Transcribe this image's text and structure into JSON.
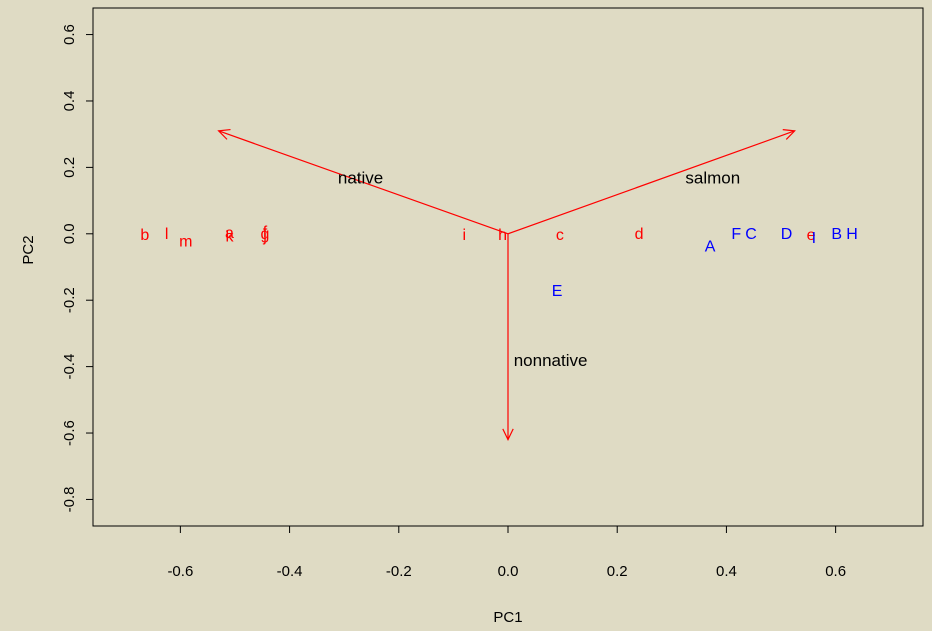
{
  "chart_data": {
    "type": "scatter",
    "title": "",
    "xlabel": "PC1",
    "ylabel": "PC2",
    "xlim": [
      -0.76,
      0.76
    ],
    "ylim": [
      -0.88,
      0.68
    ],
    "xticks": [
      -0.6,
      -0.4,
      -0.2,
      0.0,
      0.2,
      0.4,
      0.6
    ],
    "xtick_labels": [
      "-0.6",
      "-0.4",
      "-0.2",
      "0.0",
      "0.2",
      "0.4",
      "0.6"
    ],
    "yticks": [
      -0.8,
      -0.6,
      -0.4,
      -0.2,
      0.0,
      0.2,
      0.4,
      0.6
    ],
    "ytick_labels": [
      "-0.8",
      "-0.6",
      "-0.4",
      "-0.2",
      "0.0",
      "0.2",
      "0.4",
      "0.6"
    ],
    "grid": false,
    "colors": {
      "red": "#ff0000",
      "blue": "#0000ff",
      "black": "#000000",
      "background": "#dfdbc4"
    },
    "series": [
      {
        "color": "#ff0000",
        "points": [
          {
            "label": "b",
            "x": -0.665,
            "y": 0.0
          },
          {
            "label": "l",
            "x": -0.625,
            "y": 0.003
          },
          {
            "label": "m",
            "x": -0.59,
            "y": -0.02
          },
          {
            "label": "a",
            "x": -0.51,
            "y": 0.005
          },
          {
            "label": "k",
            "x": -0.51,
            "y": -0.005
          },
          {
            "label": "g",
            "x": -0.445,
            "y": 0.003
          },
          {
            "label": "f",
            "x": -0.445,
            "y": 0.008
          },
          {
            "label": "j",
            "x": -0.445,
            "y": -0.003
          },
          {
            "label": "i",
            "x": -0.08,
            "y": 0.0
          },
          {
            "label": "h",
            "x": -0.01,
            "y": 0.0
          },
          {
            "label": "c",
            "x": 0.095,
            "y": 0.0
          },
          {
            "label": "d",
            "x": 0.24,
            "y": 0.003
          },
          {
            "label": "e",
            "x": 0.555,
            "y": 0.0
          }
        ]
      },
      {
        "color": "#0000ff",
        "points": [
          {
            "label": "A",
            "x": 0.37,
            "y": -0.035
          },
          {
            "label": "F",
            "x": 0.418,
            "y": 0.003
          },
          {
            "label": "C",
            "x": 0.445,
            "y": 0.003
          },
          {
            "label": "D",
            "x": 0.51,
            "y": 0.003
          },
          {
            "label": "I",
            "x": 0.56,
            "y": -0.01
          },
          {
            "label": "B",
            "x": 0.602,
            "y": 0.003
          },
          {
            "label": "H",
            "x": 0.63,
            "y": 0.003
          },
          {
            "label": "E",
            "x": 0.09,
            "y": -0.17
          }
        ]
      }
    ],
    "arrows": [
      {
        "label": "native",
        "x": -0.53,
        "y": 0.31,
        "label_x": -0.27,
        "label_y": 0.17
      },
      {
        "label": "salmon",
        "x": 0.525,
        "y": 0.31,
        "label_x": 0.375,
        "label_y": 0.17
      },
      {
        "label": "nonnative",
        "x": 0.0,
        "y": -0.62,
        "label_x": 0.078,
        "label_y": -0.38
      }
    ],
    "arrow_color": "#ff0000"
  }
}
